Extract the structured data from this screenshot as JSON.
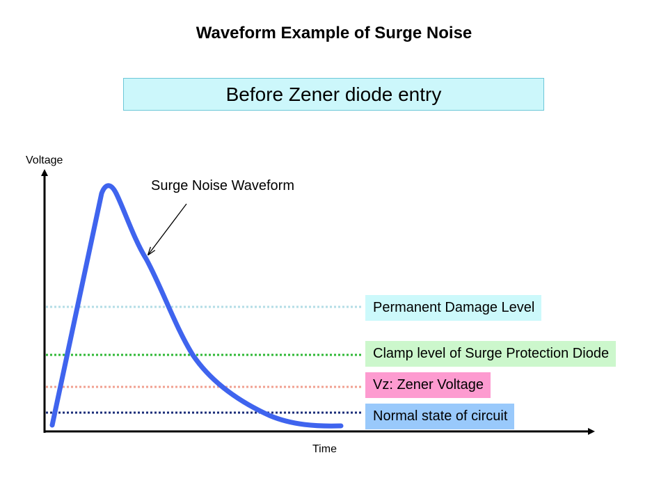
{
  "title": "Waveform Example of Surge Noise",
  "subtitle": {
    "text": "Before Zener diode entry",
    "fill": "#ccf7fb",
    "border": "#6cc7d8"
  },
  "axes": {
    "y_label": "Voltage",
    "x_label": "Time",
    "color": "#000000"
  },
  "waveform": {
    "label": "Surge Noise Waveform",
    "color": "#3f64ee"
  },
  "levels": [
    {
      "label": "Permanent Damage Level",
      "line_color": "#b3dde6",
      "label_bg": "#ccf9fb"
    },
    {
      "label": "Clamp level of Surge Protection Diode",
      "line_color": "#2fb836",
      "label_bg": "#ccf7cc"
    },
    {
      "label": "Vz: Zener Voltage",
      "line_color": "#f0a090",
      "label_bg": "#fd9bd0"
    },
    {
      "label": "Normal state of circuit",
      "line_color": "#1a2d78",
      "label_bg": "#99c9fb"
    }
  ]
}
